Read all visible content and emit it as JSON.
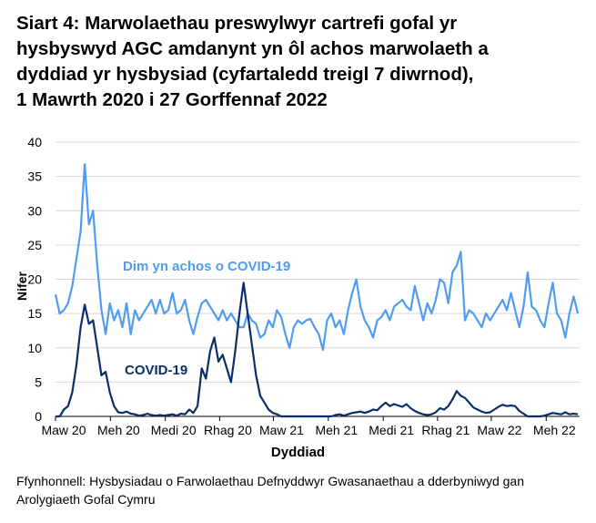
{
  "title_lines": [
    "Siart 4: Marwolaethau preswylwyr cartrefi gofal yr",
    "hysbyswyd AGC amdanynt yn ôl achos marwolaeth a",
    "dyddiad yr hysbysiad (cyfartaledd treigl 7 diwrnod),",
    "1 Mawrth 2020 i 27 Gorffennaf 2022"
  ],
  "source": "Ffynhonnell: Hysbysiadau o Farwolaethau Defnyddwyr Gwasanaethau a dderbyniwyd gan Arolygiaeth Gofal Cymru",
  "chart_data": {
    "type": "line",
    "xlabel": "Dyddiad",
    "ylabel": "Nifer",
    "ylim": [
      0,
      40
    ],
    "yticks": [
      "0",
      "5",
      "10",
      "15",
      "20",
      "25",
      "30",
      "35",
      "40"
    ],
    "xlim": [
      "2020-03-01",
      "2022-07-27"
    ],
    "xtick_labels": [
      "Maw 20",
      "Meh 20",
      "Medi 20",
      "Rhag 20",
      "Maw 21",
      "Meh 21",
      "Medi 21",
      "Rhag 21",
      "Maw 22",
      "Meh 22"
    ],
    "xtick_dates": [
      "2020-03-01",
      "2020-06-01",
      "2020-09-01",
      "2020-12-01",
      "2021-03-01",
      "2021-06-01",
      "2021-09-01",
      "2021-12-01",
      "2022-03-01",
      "2022-06-01"
    ],
    "grid": true,
    "legend": "inline labels",
    "x": [
      "2020-03-01",
      "2020-03-08",
      "2020-03-15",
      "2020-03-22",
      "2020-03-29",
      "2020-04-05",
      "2020-04-12",
      "2020-04-19",
      "2020-04-26",
      "2020-05-03",
      "2020-05-10",
      "2020-05-17",
      "2020-05-24",
      "2020-05-31",
      "2020-06-07",
      "2020-06-14",
      "2020-06-21",
      "2020-06-28",
      "2020-07-05",
      "2020-07-12",
      "2020-07-19",
      "2020-07-26",
      "2020-08-02",
      "2020-08-09",
      "2020-08-16",
      "2020-08-23",
      "2020-08-30",
      "2020-09-06",
      "2020-09-13",
      "2020-09-20",
      "2020-09-27",
      "2020-10-04",
      "2020-10-11",
      "2020-10-18",
      "2020-10-25",
      "2020-11-01",
      "2020-11-08",
      "2020-11-15",
      "2020-11-22",
      "2020-11-29",
      "2020-12-06",
      "2020-12-13",
      "2020-12-20",
      "2020-12-27",
      "2021-01-03",
      "2021-01-10",
      "2021-01-17",
      "2021-01-24",
      "2021-01-31",
      "2021-02-07",
      "2021-02-14",
      "2021-02-21",
      "2021-02-28",
      "2021-03-07",
      "2021-03-14",
      "2021-03-21",
      "2021-03-28",
      "2021-04-04",
      "2021-04-11",
      "2021-04-18",
      "2021-04-25",
      "2021-05-02",
      "2021-05-09",
      "2021-05-16",
      "2021-05-23",
      "2021-05-30",
      "2021-06-06",
      "2021-06-13",
      "2021-06-20",
      "2021-06-27",
      "2021-07-04",
      "2021-07-11",
      "2021-07-18",
      "2021-07-25",
      "2021-08-01",
      "2021-08-08",
      "2021-08-15",
      "2021-08-22",
      "2021-08-29",
      "2021-09-05",
      "2021-09-12",
      "2021-09-19",
      "2021-09-26",
      "2021-10-03",
      "2021-10-10",
      "2021-10-17",
      "2021-10-24",
      "2021-10-31",
      "2021-11-07",
      "2021-11-14",
      "2021-11-21",
      "2021-11-28",
      "2021-12-05",
      "2021-12-12",
      "2021-12-19",
      "2021-12-26",
      "2022-01-02",
      "2022-01-09",
      "2022-01-16",
      "2022-01-23",
      "2022-01-30",
      "2022-02-06",
      "2022-02-13",
      "2022-02-20",
      "2022-02-27",
      "2022-03-06",
      "2022-03-13",
      "2022-03-20",
      "2022-03-27",
      "2022-04-03",
      "2022-04-10",
      "2022-04-17",
      "2022-04-24",
      "2022-05-01",
      "2022-05-08",
      "2022-05-15",
      "2022-05-22",
      "2022-05-29",
      "2022-06-05",
      "2022-06-12",
      "2022-06-19",
      "2022-06-26",
      "2022-07-03",
      "2022-07-10",
      "2022-07-17",
      "2022-07-24"
    ],
    "series": [
      {
        "name": "Dim yn achos o COVID-19",
        "color": "#4f9cf0",
        "values": [
          17.8,
          15,
          15.5,
          16.5,
          19,
          23,
          27,
          36.8,
          28,
          30,
          22,
          15.5,
          12,
          16.5,
          14,
          15.5,
          13,
          16.5,
          12,
          15.5,
          14,
          15,
          16,
          17,
          15,
          17,
          15,
          15.5,
          18,
          15,
          15.5,
          17,
          14,
          12,
          14.5,
          16.5,
          17,
          16,
          15,
          14,
          15.5,
          14,
          15,
          14,
          13,
          13,
          15,
          14,
          13.5,
          11.5,
          12,
          14,
          13,
          15.5,
          14.5,
          12,
          10,
          13,
          14,
          13.5,
          14,
          14.2,
          13,
          12,
          9.7,
          14,
          15,
          13,
          14,
          12,
          15.5,
          18,
          20,
          16,
          14,
          13,
          11.5,
          14,
          14.5,
          15.5,
          14,
          16,
          16.5,
          17,
          16,
          15.5,
          19,
          16.5,
          14,
          16.5,
          15,
          17,
          20,
          19.5,
          16.5,
          21,
          22,
          24,
          14,
          15.5,
          15,
          14,
          13,
          15,
          14,
          15,
          16,
          17,
          15.5,
          18,
          15.5,
          13,
          16,
          21,
          16,
          15.5,
          14,
          13,
          16.5,
          19.5,
          15,
          14,
          11.5,
          15,
          17.5,
          15
        ]
      },
      {
        "name": "COVID-19",
        "color": "#0b2d6b",
        "values": [
          0,
          0,
          1,
          1.5,
          3.5,
          7.5,
          13,
          16.3,
          13.5,
          14,
          10,
          6,
          6.5,
          3.5,
          1.5,
          0.6,
          0.5,
          0.7,
          0.4,
          0.3,
          0.1,
          0.2,
          0.4,
          0.2,
          0.1,
          0.2,
          0.1,
          0.2,
          0.3,
          0.1,
          0.4,
          0.3,
          1,
          0.5,
          1.5,
          7,
          5.5,
          9.5,
          11.5,
          8,
          9,
          7,
          5,
          9.5,
          15,
          19.5,
          15,
          10.5,
          6,
          3,
          2,
          1,
          0.5,
          0.3,
          0,
          0,
          0,
          0,
          0,
          0,
          0,
          0,
          0,
          0,
          0,
          0,
          0,
          0.2,
          0.3,
          0.1,
          0.3,
          0.5,
          0.6,
          0.7,
          0.5,
          0.7,
          1,
          0.9,
          1.5,
          2,
          1.5,
          1.8,
          1.6,
          1.4,
          1.8,
          1.2,
          0.8,
          0.5,
          0.3,
          0.2,
          0.3,
          0.6,
          1.2,
          1,
          1.5,
          2.5,
          3.7,
          3,
          2.7,
          2,
          1.3,
          1,
          0.7,
          0.5,
          0.6,
          1,
          1.4,
          1.7,
          1.5,
          1.6,
          1.5,
          0.8,
          0.4,
          0,
          0,
          0,
          0,
          0.1,
          0.3,
          0.5,
          0.4,
          0.3,
          0.6,
          0.3,
          0.4,
          0.3
        ]
      }
    ]
  }
}
